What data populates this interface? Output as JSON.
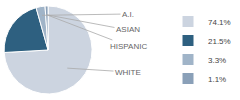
{
  "chart_data": {
    "type": "pie",
    "categories": [
      "74.1%",
      "21.5%",
      "3.3%",
      "1.1%"
    ],
    "values": [
      74.1,
      21.5,
      3.3,
      1.1
    ],
    "colors": [
      "#ccd4e0",
      "#2e6080",
      "#a0b4c8",
      "#8aa0b8"
    ],
    "annotations": [
      {
        "text": "WHITE",
        "category": "74.1%"
      },
      {
        "text": "A.I.",
        "category": "3.3%"
      },
      {
        "text": "ASIAN",
        "category": "1.1%"
      },
      {
        "text": "HISPANIC",
        "category": "1.1%"
      }
    ],
    "legend": "right"
  }
}
